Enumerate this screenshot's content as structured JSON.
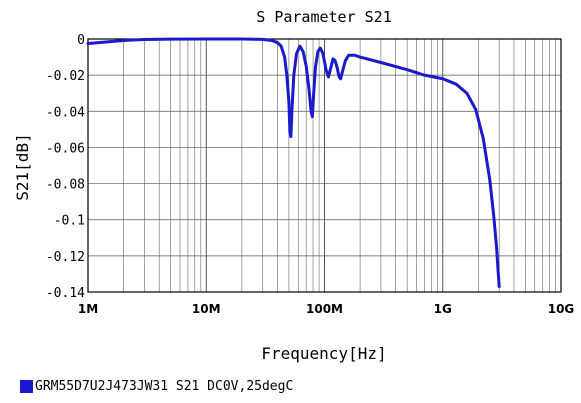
{
  "chart_data": {
    "type": "line",
    "title": "S Parameter S21",
    "xlabel": "Frequency[Hz]",
    "ylabel": "S21[dB]",
    "x_scale": "log",
    "xlim": [
      1000000,
      10000000000
    ],
    "ylim": [
      -0.14,
      0
    ],
    "grid": true,
    "x_ticks": [
      {
        "value": 1000000,
        "label": "1M"
      },
      {
        "value": 10000000,
        "label": "10M"
      },
      {
        "value": 100000000,
        "label": "100M"
      },
      {
        "value": 1000000000,
        "label": "1G"
      },
      {
        "value": 10000000000,
        "label": "10G"
      }
    ],
    "y_ticks": [
      {
        "value": 0,
        "label": "0"
      },
      {
        "value": -0.02,
        "label": "-0.02"
      },
      {
        "value": -0.04,
        "label": "-0.04"
      },
      {
        "value": -0.06,
        "label": "-0.06"
      },
      {
        "value": -0.08,
        "label": "-0.08"
      },
      {
        "value": -0.1,
        "label": "-0.1"
      },
      {
        "value": -0.12,
        "label": "-0.12"
      },
      {
        "value": -0.14,
        "label": "-0.14"
      }
    ],
    "legend_position": "bottom-left",
    "series": [
      {
        "name": "GRM55D7U2J473JW31 S21 DC0V,25degC",
        "color": "#1a1acc",
        "points": [
          [
            1000000,
            -0.0025
          ],
          [
            1500000,
            -0.0015
          ],
          [
            2000000,
            -0.0008
          ],
          [
            3000000,
            -0.0003
          ],
          [
            5000000,
            -0.0001
          ],
          [
            10000000,
            0
          ],
          [
            20000000,
            0
          ],
          [
            30000000,
            -0.0002
          ],
          [
            36000000,
            -0.0008
          ],
          [
            40000000,
            -0.002
          ],
          [
            43000000,
            -0.004
          ],
          [
            46000000,
            -0.01
          ],
          [
            48000000,
            -0.02
          ],
          [
            50000000,
            -0.035
          ],
          [
            51000000,
            -0.052
          ],
          [
            52000000,
            -0.054
          ],
          [
            53000000,
            -0.04
          ],
          [
            55000000,
            -0.02
          ],
          [
            58000000,
            -0.008
          ],
          [
            62000000,
            -0.004
          ],
          [
            66000000,
            -0.007
          ],
          [
            70000000,
            -0.015
          ],
          [
            74000000,
            -0.028
          ],
          [
            77000000,
            -0.04
          ],
          [
            79000000,
            -0.043
          ],
          [
            81000000,
            -0.03
          ],
          [
            84000000,
            -0.015
          ],
          [
            88000000,
            -0.007
          ],
          [
            92000000,
            -0.005
          ],
          [
            97000000,
            -0.008
          ],
          [
            103000000,
            -0.017
          ],
          [
            108000000,
            -0.021
          ],
          [
            113000000,
            -0.016
          ],
          [
            118000000,
            -0.011
          ],
          [
            123000000,
            -0.012
          ],
          [
            128000000,
            -0.016
          ],
          [
            133000000,
            -0.021
          ],
          [
            137000000,
            -0.022
          ],
          [
            142000000,
            -0.018
          ],
          [
            150000000,
            -0.012
          ],
          [
            160000000,
            -0.009
          ],
          [
            180000000,
            -0.009
          ],
          [
            200000000,
            -0.01
          ],
          [
            300000000,
            -0.013
          ],
          [
            500000000,
            -0.017
          ],
          [
            700000000,
            -0.02
          ],
          [
            1000000000,
            -0.022
          ],
          [
            1300000000,
            -0.025
          ],
          [
            1600000000,
            -0.03
          ],
          [
            1900000000,
            -0.039
          ],
          [
            2200000000,
            -0.055
          ],
          [
            2500000000,
            -0.078
          ],
          [
            2700000000,
            -0.098
          ],
          [
            2850000000,
            -0.115
          ],
          [
            2950000000,
            -0.13
          ],
          [
            3000000000,
            -0.137
          ]
        ]
      }
    ]
  }
}
